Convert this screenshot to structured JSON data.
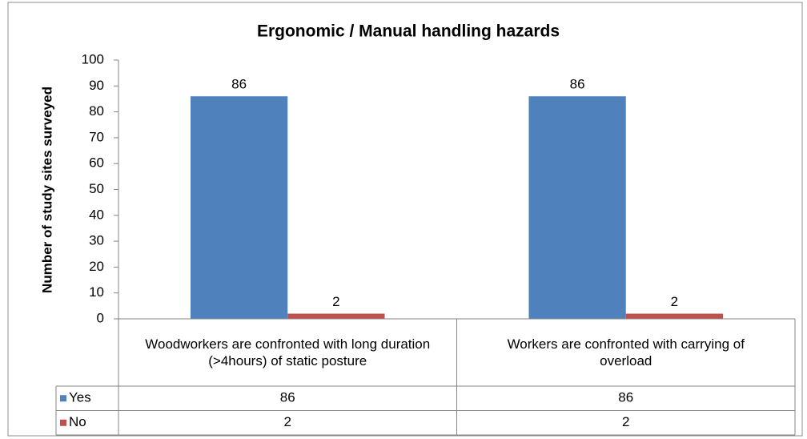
{
  "chart_data": {
    "type": "bar",
    "title": "Ergonomic / Manual handling hazards",
    "y_label": "Number of study sites surveyed",
    "categories": [
      "Woodworkers are confronted with long duration (>4hours) of static posture",
      "Workers are confronted with carrying of overload"
    ],
    "series": [
      {
        "name": "Yes",
        "color": "#4f81bd",
        "values": [
          86,
          86
        ]
      },
      {
        "name": "No",
        "color": "#c0504d",
        "values": [
          2,
          2
        ]
      }
    ],
    "ylim": [
      0,
      100
    ],
    "yticks": [
      0,
      10,
      20,
      30,
      40,
      50,
      60,
      70,
      80,
      90,
      100
    ],
    "grid": false,
    "data_table": true
  }
}
